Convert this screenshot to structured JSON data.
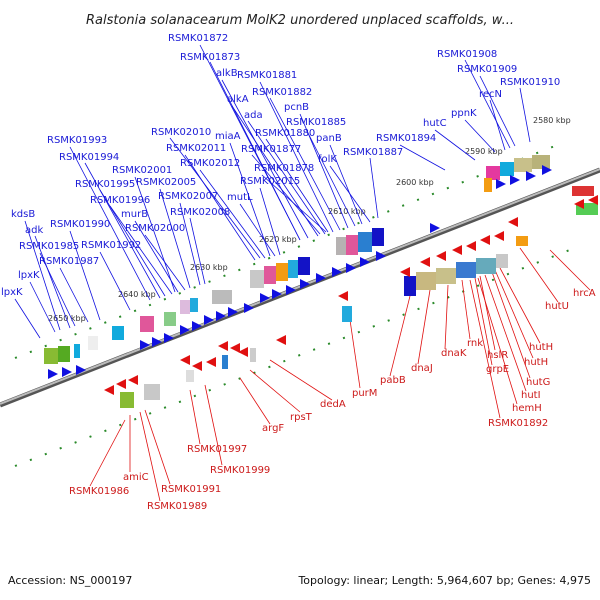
{
  "title": "Ralstonia solanacearum MolK2 unordered unplaced scaffolds, w...",
  "footer": {
    "accession": "Accession: NS_000197",
    "summary": "Topology: linear; Length: 5,964,607 bp; Genes: 4,975"
  },
  "colors": {
    "forward": "#1010e0",
    "reverse": "#e01010",
    "axis": "#7a7a7a",
    "tick": "#2a8a2a"
  },
  "kbp_labels": [
    "2580 kbp",
    "2590 kbp",
    "2600 kbp",
    "2610 kbp",
    "2620 kbp",
    "2630 kbp",
    "2640 kbp",
    "2650 kbp"
  ],
  "forward_genes": [
    "RSMK01872",
    "RSMK01873",
    "alkB",
    "alkA",
    "ada",
    "RSMK01881",
    "RSMK01882",
    "pcnB",
    "RSMK01885",
    "panB",
    "RSMK01880",
    "RSMK01877",
    "RSMK01878",
    "folK",
    "RSMK01887",
    "RSMK02010",
    "miaA",
    "RSMK02011",
    "RSMK02012",
    "RSMK02015",
    "mutL",
    "RSMK01993",
    "RSMK01994",
    "RSMK02001",
    "RSMK01995",
    "RSMK02005",
    "RSMK01996",
    "RSMK02007",
    "murB",
    "RSMK02008",
    "RSMK02000",
    "kdsB",
    "adk",
    "RSMK01990",
    "RSMK01992",
    "RSMK01985",
    "RSMK01987",
    "lpxK",
    "lpxK",
    "RSMK01908",
    "RSMK01909",
    "recN",
    "RSMK01910",
    "ppnK",
    "hutC",
    "RSMK01894"
  ],
  "reverse_genes": [
    "hrcA",
    "hutU",
    "hutH",
    "hutH",
    "hutG",
    "hutI",
    "hemH",
    "RSMK01892",
    "grpE",
    "hslR",
    "rnk",
    "dnaK",
    "dnaJ",
    "pabB",
    "purM",
    "dedA",
    "rpsT",
    "argF",
    "RSMK01997",
    "RSMK01999",
    "RSMK01986",
    "amiC",
    "RSMK01991",
    "RSMK01989"
  ]
}
